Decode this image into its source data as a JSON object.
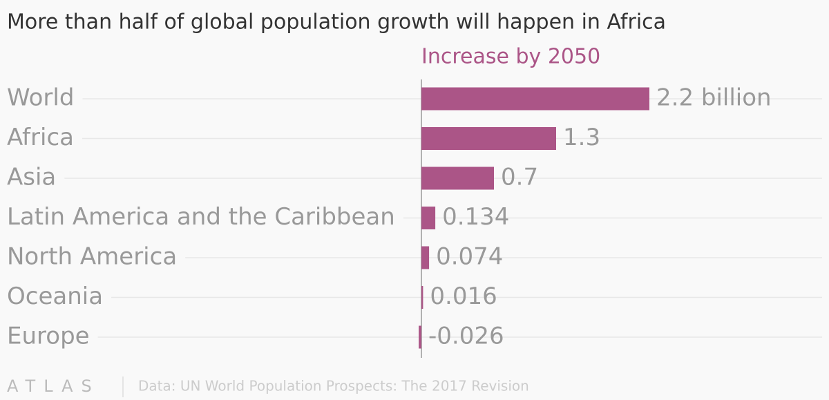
{
  "chart_data": {
    "type": "hbar",
    "title": "More than half of global population growth will happen in Africa",
    "value_header": "Increase by 2050",
    "categories": [
      "World",
      "Africa",
      "Asia",
      "Latin America and the Caribbean",
      "North America",
      "Oceania",
      "Europe"
    ],
    "values": [
      2.2,
      1.3,
      0.7,
      0.134,
      0.074,
      0.016,
      -0.026
    ],
    "value_labels": [
      "2.2 billion",
      "1.3",
      "0.7",
      "0.134",
      "0.074",
      "0.016",
      "-0.026"
    ],
    "color": "#ab5587",
    "xlim": [
      0,
      2.2
    ],
    "grid": true,
    "source": "Data: UN World Population Prospects: The 2017 Revision",
    "logo": "ATLAS"
  }
}
